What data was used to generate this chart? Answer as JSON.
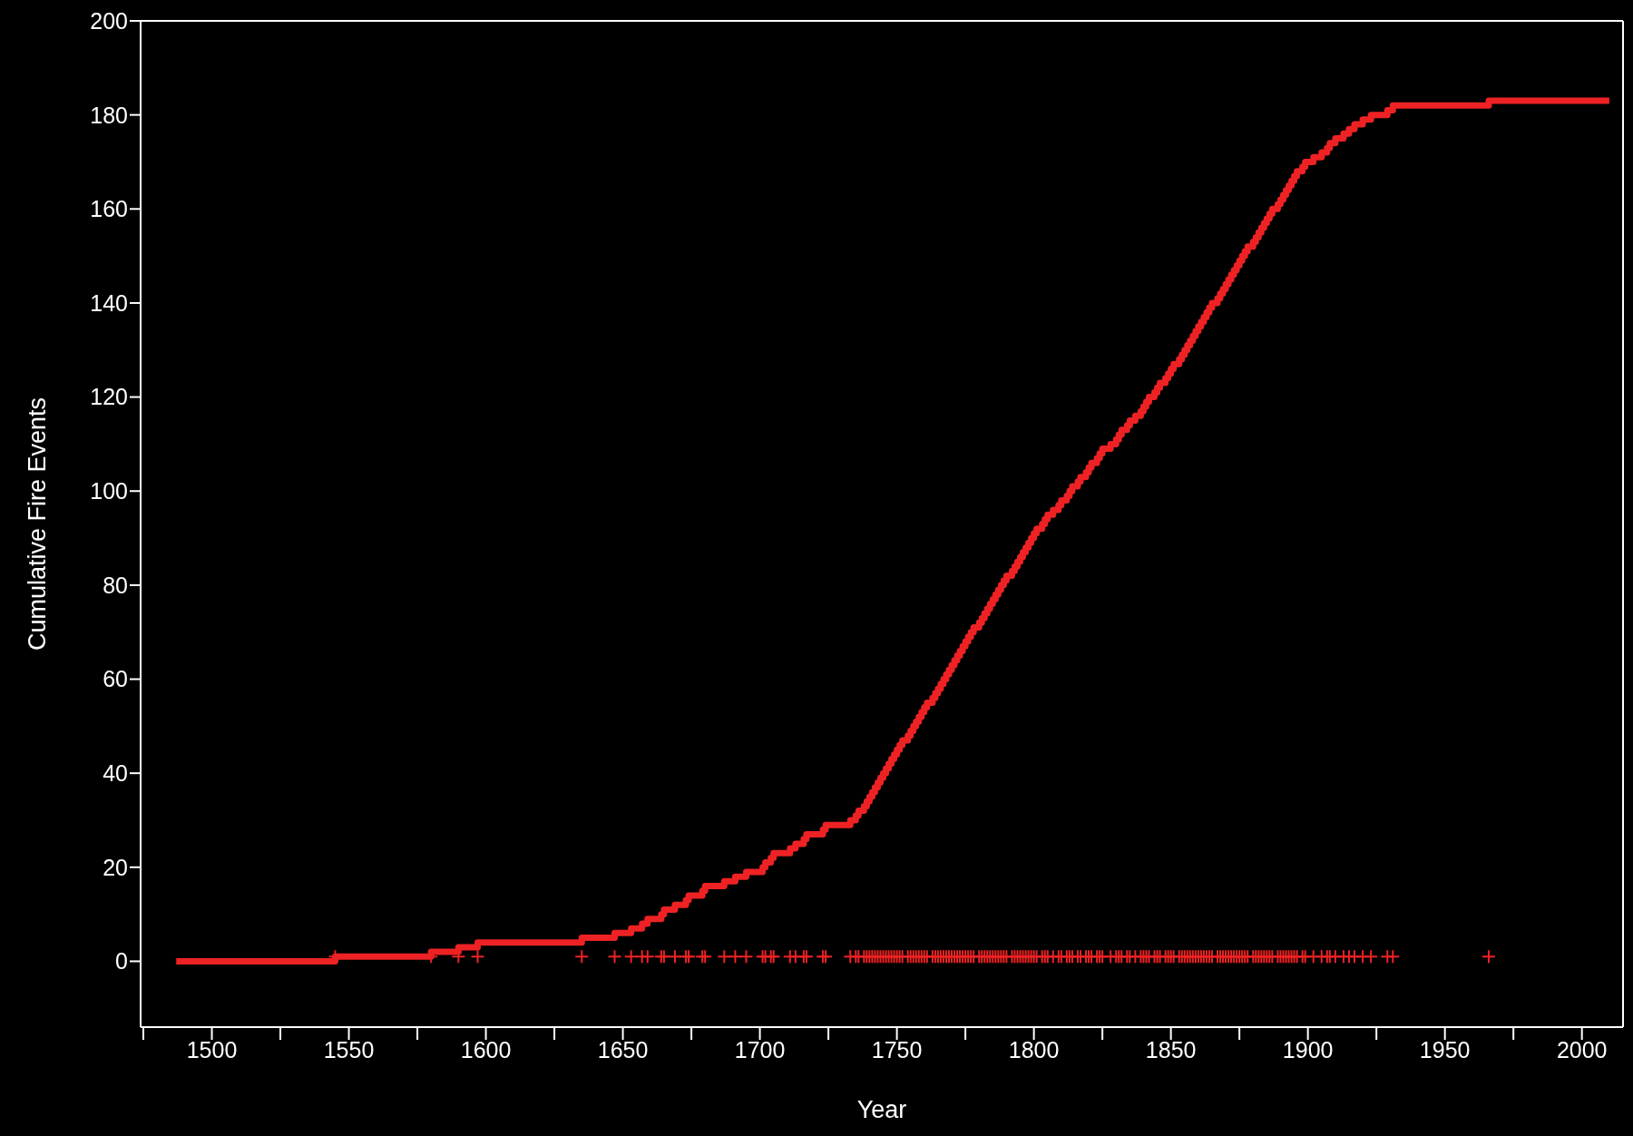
{
  "chart_data": {
    "type": "step",
    "xlabel": "Year",
    "ylabel": "Cumulative Fire Events",
    "xlim": [
      1474,
      2015
    ],
    "ylim": [
      -14,
      200
    ],
    "xticks": [
      {
        "value": 1475,
        "label": null
      },
      1500,
      {
        "value": 1525,
        "label": null
      },
      1550,
      {
        "value": 1575,
        "label": null
      },
      1600,
      {
        "value": 1625,
        "label": null
      },
      1650,
      {
        "value": 1675,
        "label": null
      },
      1700,
      {
        "value": 1725,
        "label": null
      },
      1750,
      {
        "value": 1775,
        "label": null
      },
      1800,
      {
        "value": 1825,
        "label": null
      },
      1850,
      {
        "value": 1875,
        "label": null
      },
      1900,
      {
        "value": 1925,
        "label": null
      },
      1950,
      {
        "value": 1975,
        "label": null
      },
      2000
    ],
    "yticks": [
      0,
      20,
      40,
      60,
      80,
      100,
      120,
      140,
      160,
      180,
      200
    ],
    "grid": false,
    "series": [
      {
        "type": "step",
        "color": "#ee2224",
        "marker": "none",
        "x": [
          1487,
          1545,
          1580,
          1590,
          1597,
          1635,
          1647,
          1653,
          1657,
          1659,
          1664,
          1665,
          1669,
          1673,
          1674,
          1679,
          1680,
          1687,
          1691,
          1695,
          1701,
          1702,
          1704,
          1705,
          1711,
          1713,
          1716,
          1717,
          1723,
          1724,
          1733,
          1735,
          1736,
          1738,
          1739,
          1740,
          1741,
          1742,
          1743,
          1744,
          1745,
          1746,
          1747,
          1748,
          1749,
          1750,
          1751,
          1752,
          1754,
          1755,
          1756,
          1757,
          1758,
          1759,
          1760,
          1761,
          1763,
          1764,
          1765,
          1766,
          1767,
          1768,
          1769,
          1770,
          1771,
          1772,
          1773,
          1774,
          1775,
          1776,
          1777,
          1778,
          1780,
          1781,
          1782,
          1783,
          1784,
          1785,
          1786,
          1787,
          1788,
          1789,
          1790,
          1792,
          1793,
          1794,
          1795,
          1796,
          1797,
          1798,
          1799,
          1800,
          1801,
          1803,
          1804,
          1805,
          1807,
          1809,
          1810,
          1812,
          1813,
          1814,
          1816,
          1817,
          1819,
          1820,
          1821,
          1823,
          1824,
          1825,
          1828,
          1830,
          1831,
          1832,
          1834,
          1835,
          1837,
          1839,
          1840,
          1841,
          1842,
          1844,
          1845,
          1846,
          1848,
          1849,
          1850,
          1851,
          1853,
          1854,
          1855,
          1856,
          1857,
          1858,
          1859,
          1860,
          1861,
          1862,
          1863,
          1864,
          1865,
          1867,
          1868,
          1869,
          1870,
          1871,
          1872,
          1873,
          1874,
          1875,
          1876,
          1877,
          1878,
          1880,
          1881,
          1882,
          1883,
          1884,
          1885,
          1886,
          1887,
          1889,
          1890,
          1891,
          1892,
          1893,
          1894,
          1895,
          1896,
          1898,
          1899,
          1902,
          1905,
          1907,
          1908,
          1910,
          1913,
          1915,
          1917,
          1920,
          1923,
          1929,
          1931,
          1966,
          2010
        ],
        "values": [
          0,
          1,
          2,
          3,
          4,
          5,
          6,
          7,
          8,
          9,
          10,
          11,
          12,
          13,
          14,
          15,
          16,
          17,
          18,
          19,
          20,
          21,
          22,
          23,
          24,
          25,
          26,
          27,
          28,
          29,
          30,
          31,
          32,
          33,
          34,
          35,
          36,
          37,
          38,
          39,
          40,
          41,
          42,
          43,
          44,
          45,
          46,
          47,
          48,
          49,
          50,
          51,
          52,
          53,
          54,
          55,
          56,
          57,
          58,
          59,
          60,
          61,
          62,
          63,
          64,
          65,
          66,
          67,
          68,
          69,
          70,
          71,
          72,
          73,
          74,
          75,
          76,
          77,
          78,
          79,
          80,
          81,
          82,
          83,
          84,
          85,
          86,
          87,
          88,
          89,
          90,
          91,
          92,
          93,
          94,
          95,
          96,
          97,
          98,
          99,
          100,
          101,
          102,
          103,
          104,
          105,
          106,
          107,
          108,
          109,
          110,
          111,
          112,
          113,
          114,
          115,
          116,
          117,
          118,
          119,
          120,
          121,
          122,
          123,
          124,
          125,
          126,
          127,
          128,
          129,
          130,
          131,
          132,
          133,
          134,
          135,
          136,
          137,
          138,
          139,
          140,
          141,
          142,
          143,
          144,
          145,
          146,
          147,
          148,
          149,
          150,
          151,
          152,
          153,
          154,
          155,
          156,
          157,
          158,
          159,
          160,
          161,
          162,
          163,
          164,
          165,
          166,
          167,
          168,
          169,
          170,
          171,
          172,
          173,
          174,
          175,
          176,
          177,
          178,
          179,
          180,
          181,
          182,
          183,
          183
        ]
      },
      {
        "type": "scatter",
        "color": "#ee2224",
        "marker": "cross",
        "x": [
          1545,
          1580,
          1590,
          1597,
          1635,
          1647,
          1653,
          1657,
          1659,
          1664,
          1665,
          1669,
          1673,
          1674,
          1679,
          1680,
          1687,
          1691,
          1695,
          1701,
          1702,
          1704,
          1705,
          1711,
          1713,
          1716,
          1717,
          1723,
          1724,
          1733,
          1735,
          1736,
          1738,
          1739,
          1740,
          1741,
          1742,
          1743,
          1744,
          1745,
          1746,
          1747,
          1748,
          1749,
          1750,
          1751,
          1752,
          1754,
          1755,
          1756,
          1757,
          1758,
          1759,
          1760,
          1761,
          1763,
          1764,
          1765,
          1766,
          1767,
          1768,
          1769,
          1770,
          1771,
          1772,
          1773,
          1774,
          1775,
          1776,
          1777,
          1778,
          1780,
          1781,
          1782,
          1783,
          1784,
          1785,
          1786,
          1787,
          1788,
          1789,
          1790,
          1792,
          1793,
          1794,
          1795,
          1796,
          1797,
          1798,
          1799,
          1800,
          1801,
          1803,
          1804,
          1805,
          1807,
          1809,
          1810,
          1812,
          1813,
          1814,
          1816,
          1817,
          1819,
          1820,
          1821,
          1823,
          1824,
          1825,
          1828,
          1830,
          1831,
          1832,
          1834,
          1835,
          1837,
          1839,
          1840,
          1841,
          1842,
          1844,
          1845,
          1846,
          1848,
          1849,
          1850,
          1851,
          1853,
          1854,
          1855,
          1856,
          1857,
          1858,
          1859,
          1860,
          1861,
          1862,
          1863,
          1864,
          1865,
          1867,
          1868,
          1869,
          1870,
          1871,
          1872,
          1873,
          1874,
          1875,
          1876,
          1877,
          1878,
          1880,
          1881,
          1882,
          1883,
          1884,
          1885,
          1886,
          1887,
          1889,
          1890,
          1891,
          1892,
          1893,
          1894,
          1895,
          1896,
          1898,
          1899,
          1902,
          1905,
          1907,
          1908,
          1910,
          1913,
          1915,
          1917,
          1920,
          1923,
          1929,
          1931,
          1966
        ],
        "values": [
          1,
          1,
          1,
          1,
          1,
          1,
          1,
          1,
          1,
          1,
          1,
          1,
          1,
          1,
          1,
          1,
          1,
          1,
          1,
          1,
          1,
          1,
          1,
          1,
          1,
          1,
          1,
          1,
          1,
          1,
          1,
          1,
          1,
          1,
          1,
          1,
          1,
          1,
          1,
          1,
          1,
          1,
          1,
          1,
          1,
          1,
          1,
          1,
          1,
          1,
          1,
          1,
          1,
          1,
          1,
          1,
          1,
          1,
          1,
          1,
          1,
          1,
          1,
          1,
          1,
          1,
          1,
          1,
          1,
          1,
          1,
          1,
          1,
          1,
          1,
          1,
          1,
          1,
          1,
          1,
          1,
          1,
          1,
          1,
          1,
          1,
          1,
          1,
          1,
          1,
          1,
          1,
          1,
          1,
          1,
          1,
          1,
          1,
          1,
          1,
          1,
          1,
          1,
          1,
          1,
          1,
          1,
          1,
          1,
          1,
          1,
          1,
          1,
          1,
          1,
          1,
          1,
          1,
          1,
          1,
          1,
          1,
          1,
          1,
          1,
          1,
          1,
          1,
          1,
          1,
          1,
          1,
          1,
          1,
          1,
          1,
          1,
          1,
          1,
          1,
          1,
          1,
          1,
          1,
          1,
          1,
          1,
          1,
          1,
          1,
          1,
          1,
          1,
          1,
          1,
          1,
          1,
          1,
          1,
          1,
          1,
          1,
          1,
          1,
          1,
          1,
          1,
          1,
          1,
          1,
          1,
          1,
          1,
          1,
          1,
          1,
          1,
          1,
          1,
          1,
          1,
          1,
          1
        ]
      }
    ]
  }
}
